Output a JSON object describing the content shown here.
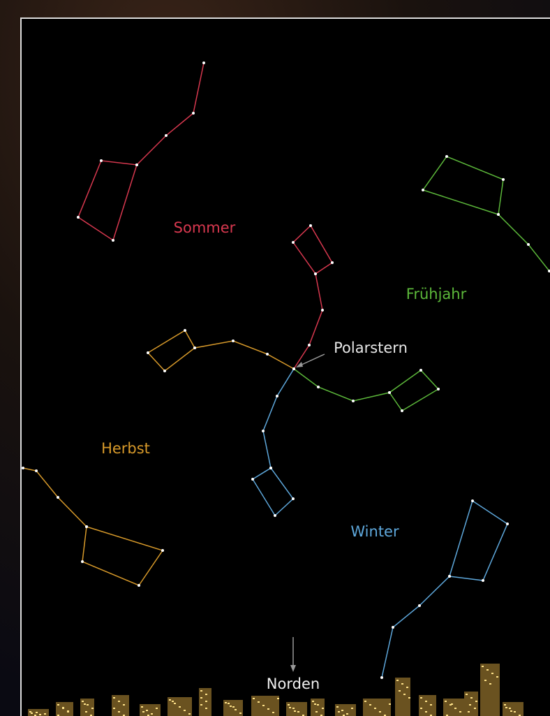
{
  "labels": {
    "summer": "Sommer",
    "spring": "Frühjahr",
    "pole_star": "Polarstern",
    "autumn": "Herbst",
    "winter": "Winter",
    "north": "Norden"
  }
}
